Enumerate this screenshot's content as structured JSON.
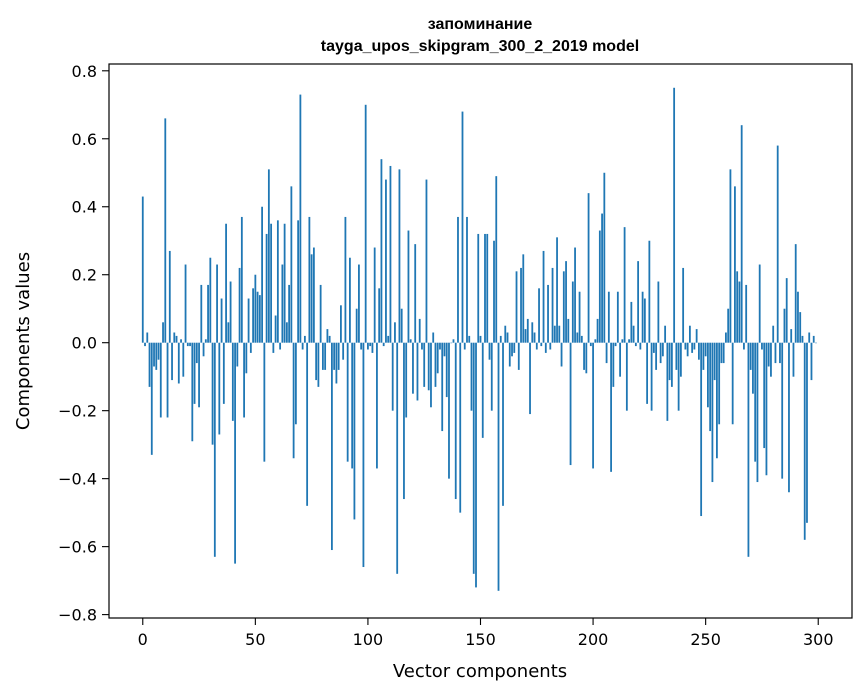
{
  "chart_data": {
    "type": "bar",
    "title_line1": "запоминание",
    "title_line2": "tayga_upos_skipgram_300_2_2019 model",
    "xlabel": "Vector components",
    "ylabel": "Components values",
    "xlim": [
      -15,
      315
    ],
    "ylim": [
      -0.81,
      0.82
    ],
    "x_ticks": [
      0,
      50,
      100,
      150,
      200,
      250,
      300
    ],
    "x_tick_labels": [
      "0",
      "50",
      "100",
      "150",
      "200",
      "250",
      "300"
    ],
    "y_ticks": [
      0.8,
      0.6,
      0.4,
      0.2,
      0.0,
      -0.2,
      -0.4,
      -0.6,
      -0.8
    ],
    "y_tick_labels": [
      "0.8",
      "0.6",
      "0.4",
      "0.2",
      "0.0",
      "−0.2",
      "−0.4",
      "−0.6",
      "−0.8"
    ],
    "bar_color": "#1f77b4",
    "values": [
      0.43,
      -0.01,
      0.03,
      -0.13,
      -0.33,
      -0.07,
      -0.08,
      -0.05,
      -0.22,
      0.06,
      0.66,
      -0.22,
      0.27,
      -0.11,
      0.03,
      0.02,
      -0.12,
      0.01,
      -0.1,
      0.23,
      -0.01,
      -0.01,
      -0.29,
      -0.18,
      -0.06,
      -0.19,
      0.17,
      -0.04,
      0.01,
      0.17,
      0.25,
      -0.3,
      -0.63,
      0.23,
      -0.27,
      0.13,
      -0.18,
      0.35,
      0.06,
      0.18,
      -0.23,
      -0.65,
      -0.07,
      0.22,
      0.37,
      -0.22,
      -0.09,
      0.13,
      -0.03,
      0.16,
      0.2,
      0.15,
      0.14,
      0.4,
      -0.35,
      0.32,
      0.51,
      0.35,
      -0.03,
      0.08,
      0.36,
      -0.02,
      0.23,
      0.35,
      0.06,
      0.17,
      0.46,
      -0.34,
      -0.24,
      0.36,
      0.73,
      -0.02,
      0.02,
      -0.48,
      0.37,
      0.26,
      0.28,
      -0.11,
      -0.13,
      0.17,
      -0.08,
      -0.08,
      0.04,
      0.02,
      -0.61,
      -0.08,
      -0.12,
      -0.08,
      0.11,
      -0.05,
      0.37,
      -0.35,
      0.25,
      -0.37,
      -0.52,
      0.1,
      0.23,
      -0.02,
      -0.66,
      0.7,
      -0.02,
      -0.01,
      -0.03,
      0.28,
      -0.37,
      0.16,
      0.54,
      -0.01,
      0.48,
      0.02,
      0.52,
      -0.2,
      0.06,
      -0.68,
      0.51,
      0.1,
      -0.46,
      -0.22,
      0.33,
      0.01,
      -0.15,
      0.29,
      -0.17,
      0.07,
      -0.02,
      -0.13,
      0.48,
      -0.14,
      -0.19,
      0.03,
      -0.13,
      -0.09,
      -0.02,
      -0.26,
      -0.04,
      -0.16,
      -0.4,
      0.0,
      0.01,
      -0.46,
      0.37,
      -0.5,
      0.68,
      -0.02,
      0.37,
      0.02,
      -0.2,
      -0.68,
      -0.72,
      0.32,
      0.02,
      -0.28,
      0.32,
      0.32,
      -0.05,
      -0.2,
      0.3,
      0.49,
      -0.73,
      0.02,
      -0.48,
      0.05,
      0.03,
      -0.07,
      -0.04,
      -0.03,
      0.21,
      -0.08,
      0.22,
      0.26,
      0.04,
      0.07,
      -0.21,
      0.06,
      0.03,
      -0.02,
      0.16,
      -0.01,
      0.27,
      -0.03,
      0.17,
      -0.02,
      0.22,
      0.05,
      0.31,
      0.05,
      -0.07,
      0.21,
      0.24,
      0.07,
      -0.36,
      0.18,
      0.28,
      0.03,
      0.15,
      0.02,
      -0.08,
      -0.09,
      0.44,
      -0.01,
      -0.37,
      0.01,
      0.07,
      0.33,
      0.38,
      0.5,
      -0.06,
      0.15,
      -0.38,
      -0.13,
      -0.01,
      0.15,
      -0.1,
      0.01,
      0.34,
      -0.2,
      0.01,
      0.12,
      0.05,
      -0.01,
      0.24,
      -0.02,
      0.15,
      0.13,
      -0.18,
      0.3,
      -0.2,
      -0.03,
      -0.08,
      0.18,
      -0.06,
      -0.04,
      0.05,
      -0.23,
      -0.11,
      -0.13,
      0.75,
      -0.08,
      -0.2,
      -0.1,
      0.22,
      -0.02,
      -0.04,
      0.05,
      -0.03,
      -0.02,
      0.04,
      -0.05,
      -0.51,
      -0.08,
      -0.04,
      -0.19,
      -0.26,
      -0.41,
      -0.11,
      -0.34,
      -0.24,
      -0.06,
      -0.06,
      0.03,
      0.1,
      0.51,
      -0.24,
      0.46,
      0.21,
      0.18,
      0.64,
      -0.02,
      0.17,
      -0.63,
      -0.08,
      -0.15,
      -0.35,
      -0.41,
      0.23,
      -0.02,
      -0.31,
      -0.39,
      -0.07,
      -0.1,
      0.05,
      -0.06,
      0.58,
      -0.06,
      -0.4,
      0.1,
      0.19,
      -0.44,
      0.04,
      -0.1,
      0.29,
      0.15,
      0.09,
      0.02,
      -0.58,
      -0.53,
      0.03,
      -0.11,
      0.02,
      0.0
    ]
  }
}
